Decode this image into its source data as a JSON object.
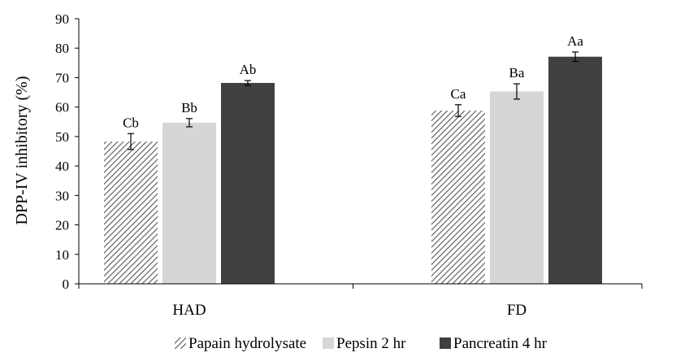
{
  "chart_data": {
    "type": "bar",
    "title": "",
    "xlabel": "",
    "ylabel": "DPP-IV inhibitory (%)",
    "ylim": [
      0,
      90
    ],
    "yticks": [
      0,
      10,
      20,
      30,
      40,
      50,
      60,
      70,
      80,
      90
    ],
    "grid": false,
    "legend_position": "bottom",
    "categories": [
      "HAD",
      "FD"
    ],
    "series": [
      {
        "name": "Papain hydrolysate",
        "pattern": "diagonal-hatch",
        "color": "#555555",
        "values": [
          48.3,
          58.8
        ],
        "errors": [
          2.7,
          2.0
        ],
        "labels": [
          "Cb",
          "Ca"
        ]
      },
      {
        "name": "Pepsin 2 hr",
        "pattern": "solid",
        "color": "#d6d6d6",
        "values": [
          54.7,
          65.3
        ],
        "errors": [
          1.4,
          2.6
        ],
        "labels": [
          "Bb",
          "Ba"
        ]
      },
      {
        "name": "Pancreatin 4 hr",
        "pattern": "solid",
        "color": "#404040",
        "values": [
          68.2,
          77.1
        ],
        "errors": [
          0.8,
          1.6
        ],
        "labels": [
          "Ab",
          "Aa"
        ]
      }
    ]
  }
}
